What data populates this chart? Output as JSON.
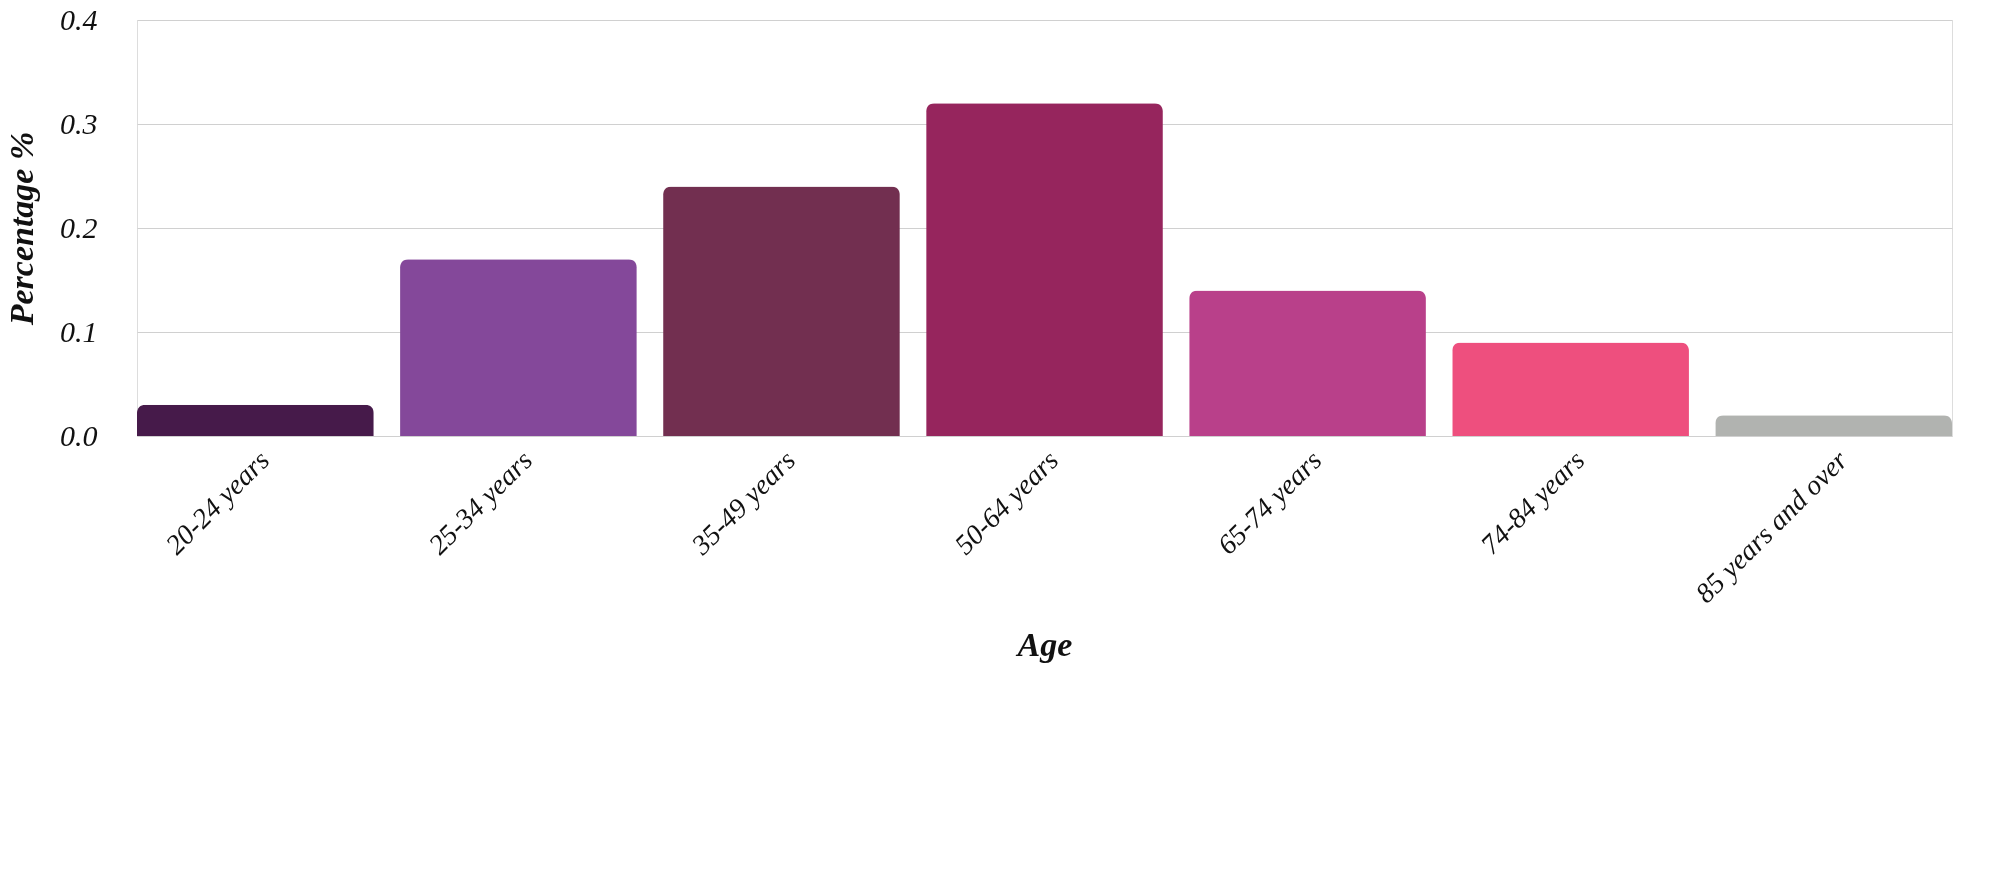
{
  "chart_data": {
    "type": "bar",
    "xlabel": "Age",
    "ylabel": "Percentage %",
    "categories": [
      "20-24 years",
      "25-34 years",
      "35-49 years",
      "50-64 years",
      "65-74 years",
      "74-84 years",
      "85 years and over"
    ],
    "values": [
      0.03,
      0.17,
      0.24,
      0.32,
      0.14,
      0.09,
      0.02
    ],
    "colors": [
      "#461a4a",
      "#84489a",
      "#722f50",
      "#96255d",
      "#b9408a",
      "#ee4f7e",
      "#b1b3b0"
    ],
    "ylim": [
      0,
      0.4
    ],
    "yticks": [
      {
        "value": 0,
        "label": "0.0"
      },
      0.1,
      0.2,
      0.3,
      0.4
    ],
    "grid": "y"
  }
}
